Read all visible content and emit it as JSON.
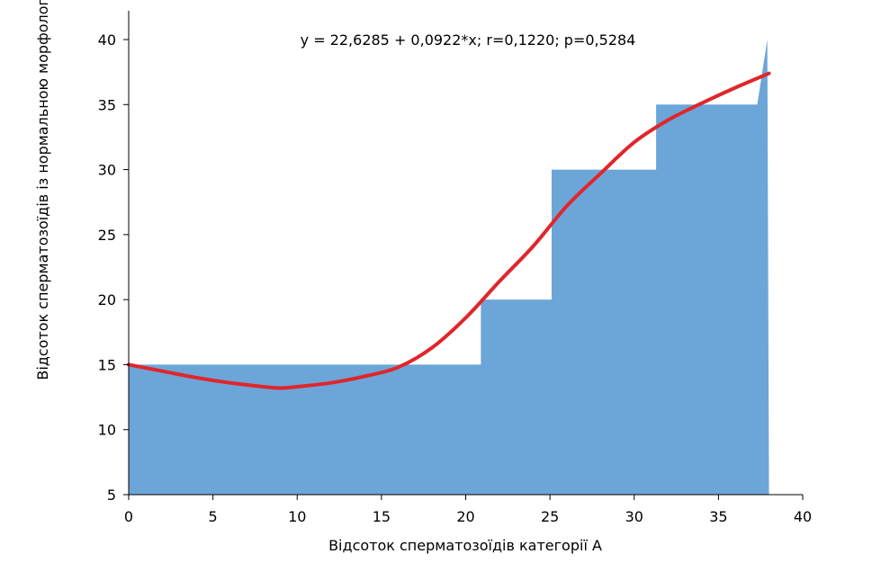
{
  "chart_data": {
    "type": "area",
    "title": "",
    "equation": "y = 22,6285 + 0,0922*x; r=0,1220; p=0,5284",
    "xlabel": "Відсоток сперматозоїдів категорії А",
    "ylabel": "Відсоток сперматозоїдів із нормальною морфологією",
    "xlim": [
      0,
      40
    ],
    "ylim": [
      5,
      40
    ],
    "x_ticks": [
      "0",
      "5",
      "10",
      "15",
      "20",
      "25",
      "30",
      "35",
      "40"
    ],
    "y_ticks": [
      "5",
      "10",
      "15",
      "20",
      "25",
      "30",
      "35",
      "40"
    ],
    "grid": false,
    "series": [
      {
        "kind": "area",
        "color": "#6ca6d9",
        "x": [
          0,
          20.9,
          20.9,
          25.1,
          25.1,
          31.3,
          31.3,
          37.3,
          37.9,
          38.0
        ],
        "y": [
          15,
          15,
          20,
          20,
          30,
          30,
          35,
          35,
          40,
          5
        ]
      },
      {
        "kind": "line",
        "color": "#e0262b",
        "x": [
          0,
          2,
          4,
          6,
          8,
          9,
          10,
          12,
          14,
          16,
          18,
          20,
          22,
          24,
          26,
          28,
          30,
          32,
          34,
          36,
          38
        ],
        "y": [
          15,
          14.5,
          14,
          13.6,
          13.3,
          13.2,
          13.3,
          13.6,
          14.1,
          14.8,
          16.3,
          18.6,
          21.4,
          24.1,
          27.2,
          29.7,
          32.1,
          33.8,
          35.1,
          36.3,
          37.4
        ]
      }
    ]
  }
}
